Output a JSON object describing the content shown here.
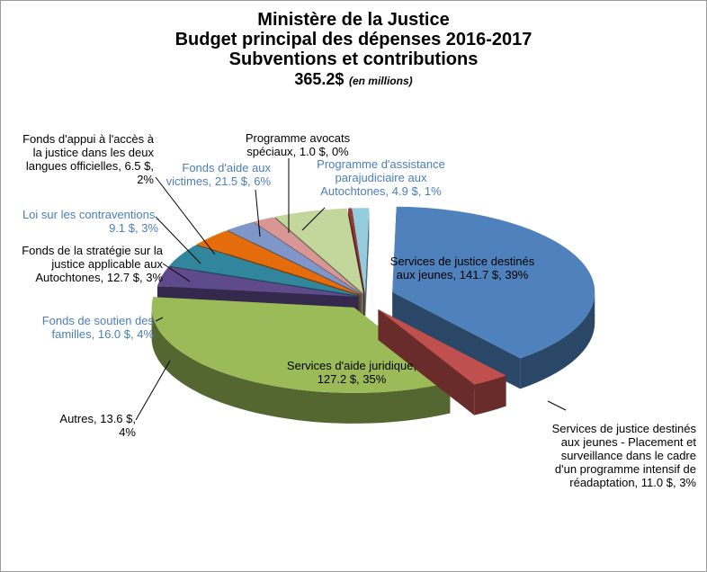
{
  "chart_data": {
    "type": "pie3d",
    "title": [
      "Ministère de la Justice",
      "Budget principal des dépenses 2016-2017",
      "Subventions et contributions"
    ],
    "total": "365.2$",
    "total_note": "(en millions)",
    "categories": [
      "Services de justice destinés aux jeunes",
      "Services de justice destinés aux jeunes - Placement et surveillance dans le cadre d'un programme intensif de réadaptation",
      "Services d'aide juridique",
      "Autres",
      "Fonds de soutien des familles",
      "Fonds de la stratégie sur la justice applicable aux Autochtones",
      "Loi sur les contraventions",
      "Fonds d'appui à l'accès à la justice dans les deux langues officielles",
      "Fonds d'aide aux victimes",
      "Programme avocats spéciaux",
      "Programme d'assistance parajudiciaire aux Autochtones"
    ],
    "values": [
      141.7,
      11.0,
      127.2,
      13.6,
      16.0,
      12.7,
      9.1,
      6.5,
      21.5,
      1.0,
      4.9
    ],
    "value_labels": [
      "141.7 $, 39%",
      "11.0 $, 3%",
      "127.2 $, 35%",
      "13.6 $, 4%",
      "16.0 $, 4%",
      "12.7 $, 3%",
      "9.1 $, 3%",
      "6.5 $, 2%",
      "21.5 $, 6%",
      "1.0 $, 0%",
      "4.9 $, 1%"
    ],
    "colors": [
      "#4f81bd",
      "#c0504d",
      "#9bbb59",
      "#5f4b8b",
      "#31859c",
      "#e46c0a",
      "#7f96c8",
      "#d99694",
      "#c3d69b",
      "#953735",
      "#93cddd"
    ],
    "label_colors": [
      "#000000",
      "#000000",
      "#000000",
      "#000000",
      "#4a7ebb",
      "#000000",
      "#4a7ebb",
      "#000000",
      "#4a7ebb",
      "#000000",
      "#4a7ebb"
    ]
  }
}
